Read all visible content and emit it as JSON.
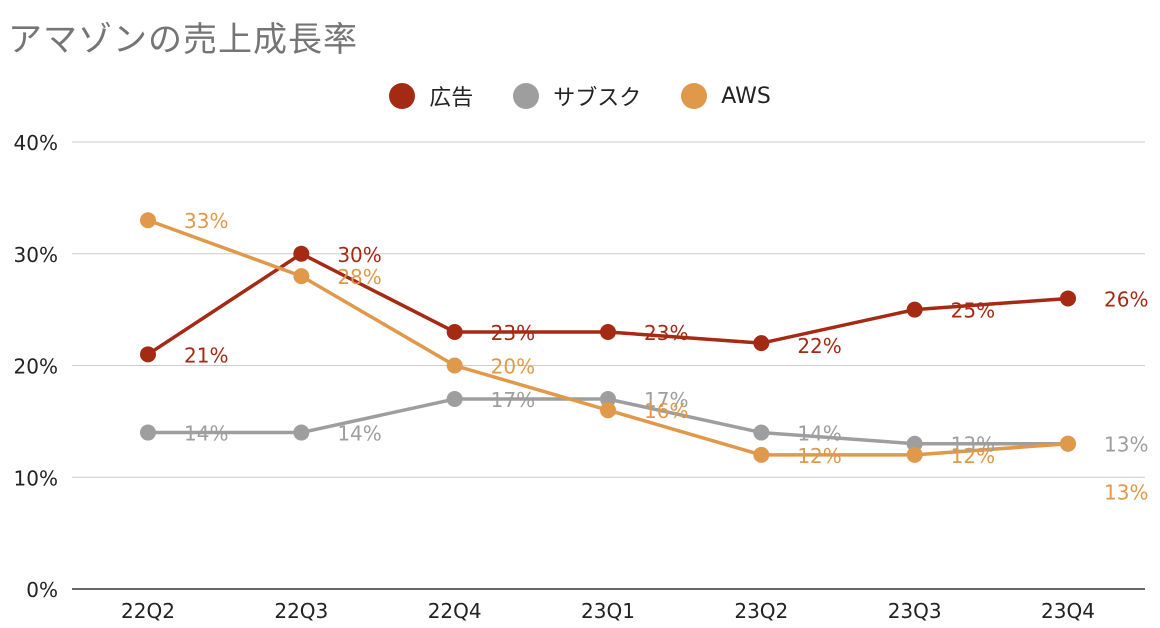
{
  "title": "アマゾンの売上成長率",
  "chart_data": {
    "type": "line",
    "categories": [
      "22Q2",
      "22Q3",
      "22Q4",
      "23Q1",
      "23Q2",
      "23Q3",
      "23Q4"
    ],
    "series": [
      {
        "name": "広告",
        "color": "#a52a14",
        "values": [
          21,
          30,
          23,
          23,
          22,
          25,
          26
        ]
      },
      {
        "name": "サブスク",
        "color": "#9e9e9e",
        "values": [
          14,
          14,
          17,
          17,
          14,
          13,
          13
        ]
      },
      {
        "name": "AWS",
        "color": "#e0994a",
        "values": [
          33,
          28,
          20,
          16,
          12,
          12,
          13
        ]
      }
    ],
    "y_ticks": [
      "0%",
      "10%",
      "20%",
      "30%",
      "40%"
    ],
    "ylim": [
      0,
      40
    ],
    "value_suffix": "%",
    "grid": true,
    "legend_position": "top-center"
  }
}
